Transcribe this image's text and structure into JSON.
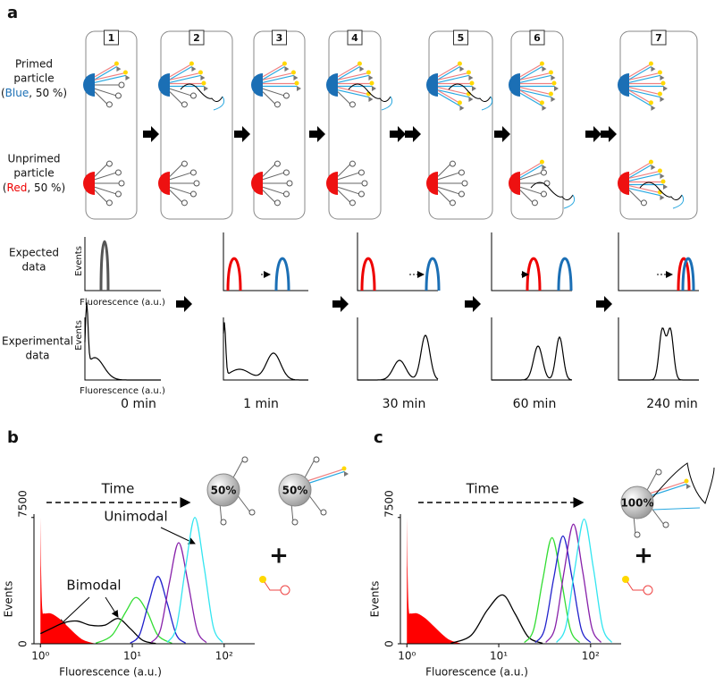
{
  "panel_a": {
    "label": "a",
    "steps": [
      "1",
      "2",
      "3",
      "4",
      "5",
      "6",
      "7"
    ],
    "primed_label": [
      "Primed",
      "particle"
    ],
    "primed_detail": [
      "(",
      "Blue",
      ", 50 %)"
    ],
    "unprimed_label": [
      "Unprimed",
      "particle"
    ],
    "unprimed_detail": [
      "(",
      "Red",
      ", 50 %)"
    ],
    "expected_label": [
      "Expected",
      "data"
    ],
    "experimental_label": [
      "Experimental",
      "data"
    ],
    "events_label": "Events",
    "fluorescence_label": "Fluorescence (a.u.)",
    "times": [
      "0 min",
      "1 min",
      "30 min",
      "60 min",
      "240 min"
    ]
  },
  "chart_data": [
    {
      "type": "line",
      "panel_label": "b",
      "x_label": "Fluorescence (a.u.)",
      "y_label": "Events",
      "xscale": "log",
      "xlim": [
        0.85,
        215
      ],
      "ylim": [
        0,
        7700
      ],
      "xticks": [
        {
          "value": 1,
          "label": "10⁰"
        },
        {
          "value": 10,
          "label": "10¹"
        },
        {
          "value": 100,
          "label": "10²"
        }
      ],
      "yticks": [
        0,
        7500
      ],
      "time_label": "Time",
      "bimodal_label": "Bimodal",
      "unimodal_label": "Unimodal",
      "badges": [
        "50%",
        "50%"
      ],
      "plus": "+",
      "series": [
        {
          "color": "#ff0000",
          "style": "area",
          "x": [
            1,
            1.02,
            1.05,
            1.1,
            1.3,
            1.6,
            2,
            2.5,
            3,
            4
          ],
          "values": [
            7500,
            4000,
            2000,
            1800,
            1800,
            1500,
            1000,
            500,
            200,
            0
          ]
        },
        {
          "color": "#000000",
          "style": "line",
          "x": [
            1,
            1.3,
            1.8,
            2.5,
            3.5,
            5,
            7,
            9.5,
            13,
            18
          ],
          "values": [
            600,
            900,
            1250,
            1350,
            1100,
            1100,
            1500,
            900,
            200,
            20
          ]
        },
        {
          "color": "#33dd33",
          "style": "line",
          "x": [
            4,
            6,
            8.5,
            11,
            14.5,
            19,
            27
          ],
          "values": [
            30,
            500,
            1900,
            2750,
            1900,
            500,
            30
          ]
        },
        {
          "color": "#2222cc",
          "style": "line",
          "x": [
            9.5,
            12,
            15.1,
            19,
            23.9,
            30.1,
            38
          ],
          "values": [
            40,
            540,
            2440,
            4000,
            2440,
            540,
            40
          ]
        },
        {
          "color": "#8822aa",
          "style": "line",
          "x": [
            16,
            20.2,
            25.4,
            32,
            40.3,
            50.7,
            64
          ],
          "values": [
            70,
            810,
            3660,
            6000,
            3660,
            810,
            70
          ]
        },
        {
          "color": "#33e5f0",
          "style": "line",
          "x": [
            24,
            30.3,
            38.1,
            48,
            60.4,
            76.1,
            96
          ],
          "values": [
            80,
            1010,
            4580,
            7500,
            4580,
            1010,
            80
          ]
        }
      ]
    },
    {
      "type": "line",
      "panel_label": "c",
      "x_label": "Fluorescence (a.u.)",
      "y_label": "Events",
      "xscale": "log",
      "xlim": [
        0.85,
        215
      ],
      "ylim": [
        0,
        7700
      ],
      "xticks": [
        {
          "value": 1,
          "label": "10⁰"
        },
        {
          "value": 10,
          "label": "10¹"
        },
        {
          "value": 100,
          "label": "10²"
        }
      ],
      "yticks": [
        0,
        7500
      ],
      "time_label": "Time",
      "badges": [
        "100%"
      ],
      "plus": "+",
      "series": [
        {
          "color": "#ff0000",
          "style": "area",
          "x": [
            1,
            1.02,
            1.05,
            1.1,
            1.3,
            1.6,
            2,
            2.5,
            3,
            4
          ],
          "values": [
            7500,
            4000,
            2000,
            1800,
            1800,
            1500,
            1000,
            500,
            200,
            0
          ]
        },
        {
          "color": "#000000",
          "style": "line",
          "x": [
            3,
            5,
            7.5,
            11,
            15,
            21,
            30
          ],
          "values": [
            30,
            500,
            2000,
            2900,
            1800,
            400,
            30
          ]
        },
        {
          "color": "#33dd33",
          "style": "line",
          "x": [
            19,
            24,
            30.2,
            38,
            47.8,
            60.2,
            76
          ],
          "values": [
            70,
            850,
            3840,
            6300,
            3840,
            850,
            70
          ]
        },
        {
          "color": "#2222cc",
          "style": "line",
          "x": [
            25,
            31.5,
            39.7,
            50,
            62.9,
            79.2,
            100
          ],
          "values": [
            70,
            860,
            3900,
            6400,
            3900,
            860,
            70
          ]
        },
        {
          "color": "#8822aa",
          "style": "line",
          "x": [
            32.5,
            41,
            51.6,
            65,
            81.8,
            103,
            130
          ],
          "values": [
            80,
            960,
            4330,
            7100,
            4330,
            960,
            80
          ]
        },
        {
          "color": "#33e5f0",
          "style": "line",
          "x": [
            42.5,
            53.6,
            67.5,
            85,
            107,
            134.8,
            170
          ],
          "values": [
            80,
            1000,
            4510,
            7400,
            4510,
            1000,
            80
          ]
        }
      ]
    }
  ]
}
